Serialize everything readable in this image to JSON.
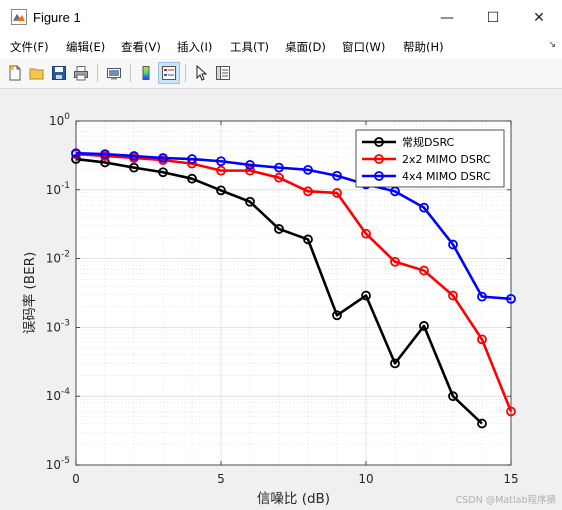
{
  "window": {
    "title": "Figure 1",
    "controls": {
      "minimize": "—",
      "maximize": "☐",
      "close": "✕"
    }
  },
  "menu": [
    {
      "label": "文件(F)"
    },
    {
      "label": "编辑(E)"
    },
    {
      "label": "查看(V)"
    },
    {
      "label": "插入(I)"
    },
    {
      "label": "工具(T)"
    },
    {
      "label": "桌面(D)"
    },
    {
      "label": "窗口(W)"
    },
    {
      "label": "帮助(H)"
    }
  ],
  "toolbar": {
    "icons": [
      "new-figure-icon",
      "open-file-icon",
      "save-icon",
      "print-icon",
      "link-plot-icon",
      "insert-colorbar-icon",
      "insert-legend-icon",
      "pointer-icon",
      "property-inspector-icon"
    ]
  },
  "chart_data": {
    "type": "line",
    "title": "",
    "xlabel": "信噪比 (dB)",
    "ylabel": "误码率 (BER)",
    "xlim": [
      0,
      15
    ],
    "ylim": [
      1e-05,
      1
    ],
    "yscale": "log",
    "grid": true,
    "minor_grid": true,
    "legend_position": "top-right",
    "x_ticks": [
      "0",
      "5",
      "10",
      "15"
    ],
    "y_ticks": [
      {
        "base": "10",
        "exp": "0"
      },
      {
        "base": "10",
        "exp": "-1"
      },
      {
        "base": "10",
        "exp": "-2"
      },
      {
        "base": "10",
        "exp": "-3"
      },
      {
        "base": "10",
        "exp": "-4"
      },
      {
        "base": "10",
        "exp": "-5"
      }
    ],
    "series": [
      {
        "name": "常规DSRC",
        "color": "#000000",
        "x": [
          0,
          1,
          2,
          3,
          4,
          5,
          6,
          7,
          8,
          9,
          10,
          11,
          12,
          13,
          14
        ],
        "y": [
          0.28,
          0.25,
          0.21,
          0.18,
          0.145,
          0.098,
          0.067,
          0.027,
          0.019,
          0.0015,
          0.0029,
          0.0003,
          0.00105,
          0.0001,
          4e-05
        ]
      },
      {
        "name": "2x2 MIMO DSRC",
        "color": "#ff0000",
        "x": [
          0,
          1,
          2,
          3,
          4,
          5,
          6,
          7,
          8,
          9,
          10,
          11,
          12,
          13,
          14,
          15
        ],
        "y": [
          0.33,
          0.31,
          0.29,
          0.27,
          0.24,
          0.19,
          0.19,
          0.15,
          0.095,
          0.09,
          0.023,
          0.009,
          0.0067,
          0.0029,
          0.00067,
          6e-05
        ]
      },
      {
        "name": "4x4 MIMO DSRC",
        "color": "#0000ff",
        "x": [
          0,
          1,
          2,
          3,
          4,
          5,
          6,
          7,
          8,
          9,
          10,
          11,
          12,
          13,
          14,
          15
        ],
        "y": [
          0.34,
          0.33,
          0.31,
          0.29,
          0.28,
          0.26,
          0.23,
          0.21,
          0.195,
          0.16,
          0.12,
          0.095,
          0.055,
          0.016,
          0.0028,
          0.0026
        ]
      }
    ]
  },
  "watermark": "CSDN @Matlab程序猿"
}
